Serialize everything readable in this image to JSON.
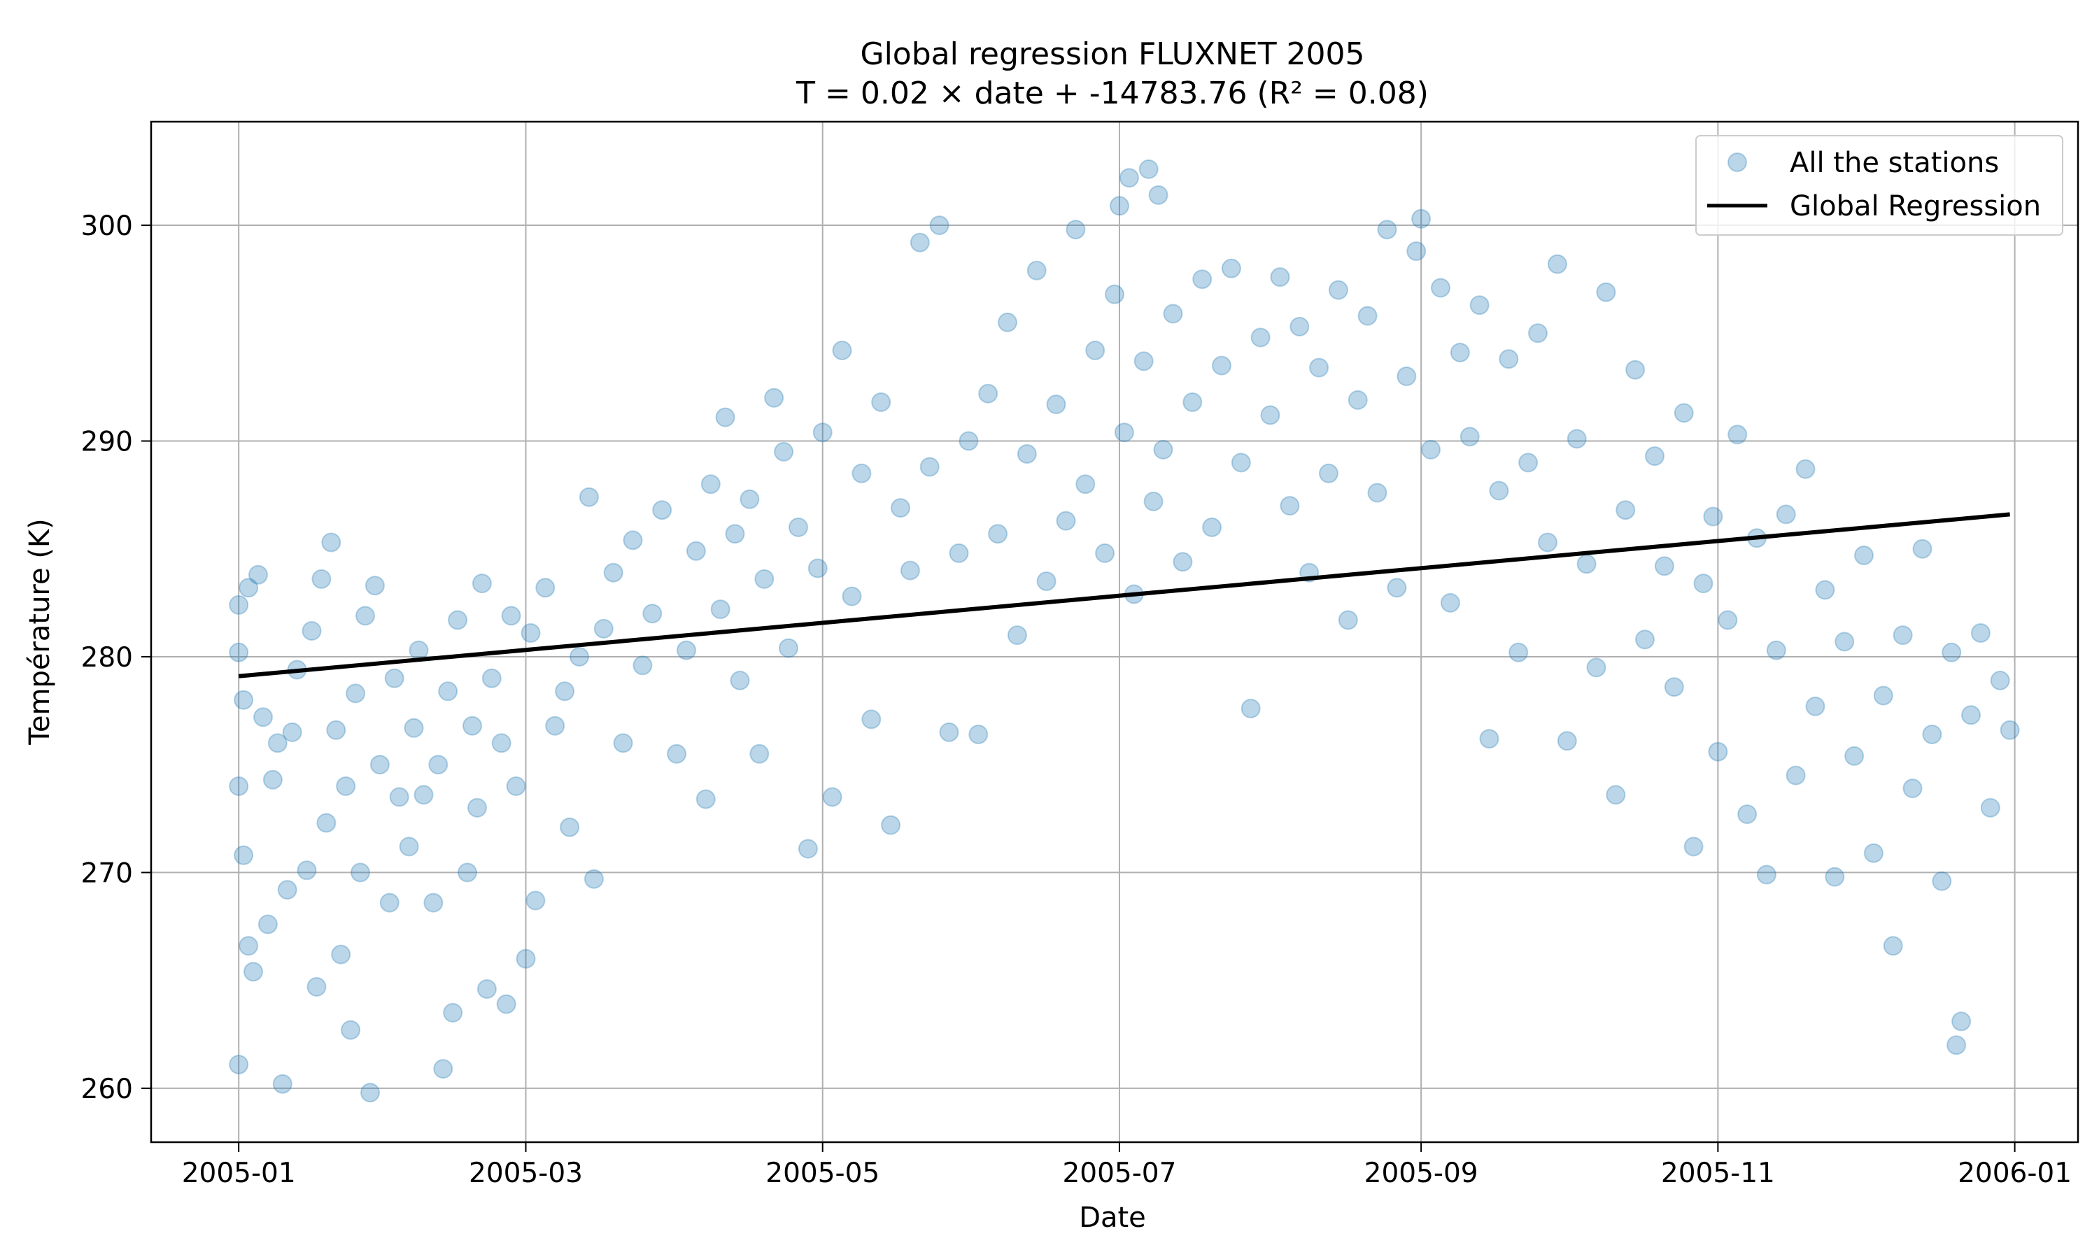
{
  "chart_data": {
    "type": "scatter",
    "title": "Global regression FLUXNET 2005",
    "subtitle": "T = 0.02 × date + -14783.76 (R² = 0.08)",
    "xlabel": "Date",
    "ylabel": "Température (K)",
    "x_scale": "date",
    "xlim": [
      "2004-12-14",
      "2006-01-14"
    ],
    "ylim": [
      257.5,
      304.8
    ],
    "x_ticks": [
      {
        "value": "2005-01-01",
        "label": "2005-01"
      },
      {
        "value": "2005-03-01",
        "label": "2005-03"
      },
      {
        "value": "2005-05-01",
        "label": "2005-05"
      },
      {
        "value": "2005-07-01",
        "label": "2005-07"
      },
      {
        "value": "2005-09-01",
        "label": "2005-09"
      },
      {
        "value": "2005-11-01",
        "label": "2005-11"
      },
      {
        "value": "2006-01-01",
        "label": "2006-01"
      }
    ],
    "y_ticks": [
      260,
      270,
      280,
      290,
      300
    ],
    "grid": true,
    "legend": {
      "placement": "top-right",
      "entries": [
        {
          "label": "All the stations",
          "marker": "circle"
        },
        {
          "label": "Global Regression",
          "marker": "line"
        }
      ]
    },
    "colors": {
      "scatter": "#1f77b4",
      "regression": "#000000",
      "grid": "#b0b0b0"
    },
    "series": [
      {
        "name": "All the stations",
        "type": "scatter",
        "points": [
          [
            "2005-01-01",
            261.1
          ],
          [
            "2005-01-01",
            274.0
          ],
          [
            "2005-01-01",
            280.2
          ],
          [
            "2005-01-01",
            282.4
          ],
          [
            "2005-01-02",
            270.8
          ],
          [
            "2005-01-02",
            278.0
          ],
          [
            "2005-01-03",
            266.6
          ],
          [
            "2005-01-03",
            283.2
          ],
          [
            "2005-01-04",
            265.4
          ],
          [
            "2005-01-05",
            283.8
          ],
          [
            "2005-01-06",
            277.2
          ],
          [
            "2005-01-07",
            267.6
          ],
          [
            "2005-01-08",
            274.3
          ],
          [
            "2005-01-09",
            276.0
          ],
          [
            "2005-01-10",
            260.2
          ],
          [
            "2005-01-11",
            269.2
          ],
          [
            "2005-01-12",
            276.5
          ],
          [
            "2005-01-13",
            279.4
          ],
          [
            "2005-01-15",
            270.1
          ],
          [
            "2005-01-16",
            281.2
          ],
          [
            "2005-01-17",
            264.7
          ],
          [
            "2005-01-18",
            283.6
          ],
          [
            "2005-01-19",
            272.3
          ],
          [
            "2005-01-20",
            285.3
          ],
          [
            "2005-01-21",
            276.6
          ],
          [
            "2005-01-22",
            266.2
          ],
          [
            "2005-01-23",
            274.0
          ],
          [
            "2005-01-24",
            262.7
          ],
          [
            "2005-01-25",
            278.3
          ],
          [
            "2005-01-26",
            270.0
          ],
          [
            "2005-01-27",
            281.9
          ],
          [
            "2005-01-28",
            259.8
          ],
          [
            "2005-01-29",
            283.3
          ],
          [
            "2005-01-30",
            275.0
          ],
          [
            "2005-02-01",
            268.6
          ],
          [
            "2005-02-02",
            279.0
          ],
          [
            "2005-02-03",
            273.5
          ],
          [
            "2005-02-05",
            271.2
          ],
          [
            "2005-02-06",
            276.7
          ],
          [
            "2005-02-07",
            280.3
          ],
          [
            "2005-02-08",
            273.6
          ],
          [
            "2005-02-10",
            268.6
          ],
          [
            "2005-02-11",
            275.0
          ],
          [
            "2005-02-12",
            260.9
          ],
          [
            "2005-02-13",
            278.4
          ],
          [
            "2005-02-14",
            263.5
          ],
          [
            "2005-02-15",
            281.7
          ],
          [
            "2005-02-17",
            270.0
          ],
          [
            "2005-02-18",
            276.8
          ],
          [
            "2005-02-19",
            273.0
          ],
          [
            "2005-02-20",
            283.4
          ],
          [
            "2005-02-21",
            264.6
          ],
          [
            "2005-02-22",
            279.0
          ],
          [
            "2005-02-24",
            276.0
          ],
          [
            "2005-02-25",
            263.9
          ],
          [
            "2005-02-26",
            281.9
          ],
          [
            "2005-02-27",
            274.0
          ],
          [
            "2005-03-01",
            266.0
          ],
          [
            "2005-03-02",
            281.1
          ],
          [
            "2005-03-03",
            268.7
          ],
          [
            "2005-03-05",
            283.2
          ],
          [
            "2005-03-07",
            276.8
          ],
          [
            "2005-03-09",
            278.4
          ],
          [
            "2005-03-10",
            272.1
          ],
          [
            "2005-03-12",
            280.0
          ],
          [
            "2005-03-14",
            287.4
          ],
          [
            "2005-03-15",
            269.7
          ],
          [
            "2005-03-17",
            281.3
          ],
          [
            "2005-03-19",
            283.9
          ],
          [
            "2005-03-21",
            276.0
          ],
          [
            "2005-03-23",
            285.4
          ],
          [
            "2005-03-25",
            279.6
          ],
          [
            "2005-03-27",
            282.0
          ],
          [
            "2005-03-29",
            286.8
          ],
          [
            "2005-04-01",
            275.5
          ],
          [
            "2005-04-03",
            280.3
          ],
          [
            "2005-04-05",
            284.9
          ],
          [
            "2005-04-07",
            273.4
          ],
          [
            "2005-04-08",
            288.0
          ],
          [
            "2005-04-10",
            282.2
          ],
          [
            "2005-04-11",
            291.1
          ],
          [
            "2005-04-13",
            285.7
          ],
          [
            "2005-04-14",
            278.9
          ],
          [
            "2005-04-16",
            287.3
          ],
          [
            "2005-04-18",
            275.5
          ],
          [
            "2005-04-19",
            283.6
          ],
          [
            "2005-04-21",
            292.0
          ],
          [
            "2005-04-23",
            289.5
          ],
          [
            "2005-04-24",
            280.4
          ],
          [
            "2005-04-26",
            286.0
          ],
          [
            "2005-04-28",
            271.1
          ],
          [
            "2005-04-30",
            284.1
          ],
          [
            "2005-05-01",
            290.4
          ],
          [
            "2005-05-03",
            273.5
          ],
          [
            "2005-05-05",
            294.2
          ],
          [
            "2005-05-07",
            282.8
          ],
          [
            "2005-05-09",
            288.5
          ],
          [
            "2005-05-11",
            277.1
          ],
          [
            "2005-05-13",
            291.8
          ],
          [
            "2005-05-15",
            272.2
          ],
          [
            "2005-05-17",
            286.9
          ],
          [
            "2005-05-19",
            284.0
          ],
          [
            "2005-05-21",
            299.2
          ],
          [
            "2005-05-23",
            288.8
          ],
          [
            "2005-05-25",
            300.0
          ],
          [
            "2005-05-27",
            276.5
          ],
          [
            "2005-05-29",
            284.8
          ],
          [
            "2005-05-31",
            290.0
          ],
          [
            "2005-06-02",
            276.4
          ],
          [
            "2005-06-04",
            292.2
          ],
          [
            "2005-06-06",
            285.7
          ],
          [
            "2005-06-08",
            295.5
          ],
          [
            "2005-06-10",
            281.0
          ],
          [
            "2005-06-12",
            289.4
          ],
          [
            "2005-06-14",
            297.9
          ],
          [
            "2005-06-16",
            283.5
          ],
          [
            "2005-06-18",
            291.7
          ],
          [
            "2005-06-20",
            286.3
          ],
          [
            "2005-06-22",
            299.8
          ],
          [
            "2005-06-24",
            288.0
          ],
          [
            "2005-06-26",
            294.2
          ],
          [
            "2005-06-28",
            284.8
          ],
          [
            "2005-06-30",
            296.8
          ],
          [
            "2005-07-01",
            300.9
          ],
          [
            "2005-07-02",
            290.4
          ],
          [
            "2005-07-03",
            302.2
          ],
          [
            "2005-07-04",
            282.9
          ],
          [
            "2005-07-06",
            293.7
          ],
          [
            "2005-07-07",
            302.6
          ],
          [
            "2005-07-08",
            287.2
          ],
          [
            "2005-07-09",
            301.4
          ],
          [
            "2005-07-10",
            289.6
          ],
          [
            "2005-07-12",
            295.9
          ],
          [
            "2005-07-14",
            284.4
          ],
          [
            "2005-07-16",
            291.8
          ],
          [
            "2005-07-18",
            297.5
          ],
          [
            "2005-07-20",
            286.0
          ],
          [
            "2005-07-22",
            293.5
          ],
          [
            "2005-07-24",
            298.0
          ],
          [
            "2005-07-26",
            289.0
          ],
          [
            "2005-07-28",
            277.6
          ],
          [
            "2005-07-30",
            294.8
          ],
          [
            "2005-08-01",
            291.2
          ],
          [
            "2005-08-03",
            297.6
          ],
          [
            "2005-08-05",
            287.0
          ],
          [
            "2005-08-07",
            295.3
          ],
          [
            "2005-08-09",
            283.9
          ],
          [
            "2005-08-11",
            293.4
          ],
          [
            "2005-08-13",
            288.5
          ],
          [
            "2005-08-15",
            297.0
          ],
          [
            "2005-08-17",
            281.7
          ],
          [
            "2005-08-19",
            291.9
          ],
          [
            "2005-08-21",
            295.8
          ],
          [
            "2005-08-23",
            287.6
          ],
          [
            "2005-08-25",
            299.8
          ],
          [
            "2005-08-27",
            283.2
          ],
          [
            "2005-08-29",
            293.0
          ],
          [
            "2005-08-31",
            298.8
          ],
          [
            "2005-09-01",
            300.3
          ],
          [
            "2005-09-03",
            289.6
          ],
          [
            "2005-09-05",
            297.1
          ],
          [
            "2005-09-07",
            282.5
          ],
          [
            "2005-09-09",
            294.1
          ],
          [
            "2005-09-11",
            290.2
          ],
          [
            "2005-09-13",
            296.3
          ],
          [
            "2005-09-15",
            276.2
          ],
          [
            "2005-09-17",
            287.7
          ],
          [
            "2005-09-19",
            293.8
          ],
          [
            "2005-09-21",
            280.2
          ],
          [
            "2005-09-23",
            289.0
          ],
          [
            "2005-09-25",
            295.0
          ],
          [
            "2005-09-27",
            285.3
          ],
          [
            "2005-09-29",
            298.2
          ],
          [
            "2005-10-01",
            276.1
          ],
          [
            "2005-10-03",
            290.1
          ],
          [
            "2005-10-05",
            284.3
          ],
          [
            "2005-10-07",
            279.5
          ],
          [
            "2005-10-09",
            296.9
          ],
          [
            "2005-10-11",
            273.6
          ],
          [
            "2005-10-13",
            286.8
          ],
          [
            "2005-10-15",
            293.3
          ],
          [
            "2005-10-17",
            280.8
          ],
          [
            "2005-10-19",
            289.3
          ],
          [
            "2005-10-21",
            284.2
          ],
          [
            "2005-10-23",
            278.6
          ],
          [
            "2005-10-25",
            291.3
          ],
          [
            "2005-10-27",
            271.2
          ],
          [
            "2005-10-29",
            283.4
          ],
          [
            "2005-10-31",
            286.5
          ],
          [
            "2005-11-01",
            275.6
          ],
          [
            "2005-11-03",
            281.7
          ],
          [
            "2005-11-05",
            290.3
          ],
          [
            "2005-11-07",
            272.7
          ],
          [
            "2005-11-09",
            285.5
          ],
          [
            "2005-11-11",
            269.9
          ],
          [
            "2005-11-13",
            280.3
          ],
          [
            "2005-11-15",
            286.6
          ],
          [
            "2005-11-17",
            274.5
          ],
          [
            "2005-11-19",
            288.7
          ],
          [
            "2005-11-21",
            277.7
          ],
          [
            "2005-11-23",
            283.1
          ],
          [
            "2005-11-25",
            269.8
          ],
          [
            "2005-11-27",
            280.7
          ],
          [
            "2005-11-29",
            275.4
          ],
          [
            "2005-12-01",
            284.7
          ],
          [
            "2005-12-03",
            270.9
          ],
          [
            "2005-12-05",
            278.2
          ],
          [
            "2005-12-07",
            266.6
          ],
          [
            "2005-12-09",
            281.0
          ],
          [
            "2005-12-11",
            273.9
          ],
          [
            "2005-12-13",
            285.0
          ],
          [
            "2005-12-15",
            276.4
          ],
          [
            "2005-12-17",
            269.6
          ],
          [
            "2005-12-19",
            280.2
          ],
          [
            "2005-12-20",
            262.0
          ],
          [
            "2005-12-21",
            263.1
          ],
          [
            "2005-12-23",
            277.3
          ],
          [
            "2005-12-25",
            281.1
          ],
          [
            "2005-12-27",
            273.0
          ],
          [
            "2005-12-29",
            278.9
          ],
          [
            "2005-12-31",
            276.6
          ]
        ]
      },
      {
        "name": "Global Regression",
        "type": "line",
        "x": [
          "2005-01-01",
          "2005-12-31"
        ],
        "y": [
          279.1,
          286.6
        ]
      }
    ]
  }
}
